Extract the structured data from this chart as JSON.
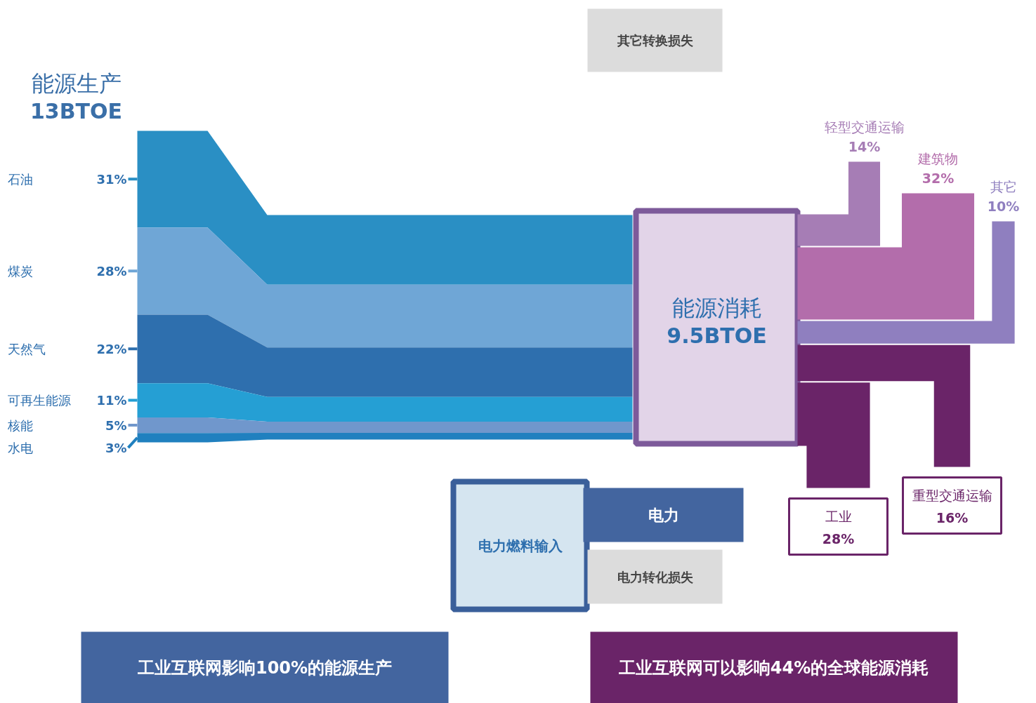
{
  "chart_data": [
    {
      "type": "other",
      "title": "能源生产",
      "subtitle": "13BTOE",
      "categories": [
        "石油",
        "煤炭",
        "天然气",
        "可再生能源",
        "核能",
        "水电"
      ],
      "values": [
        31,
        28,
        22,
        11,
        5,
        3
      ],
      "value_labels": [
        "31%",
        "28%",
        "22%",
        "11%",
        "5%",
        "3%"
      ],
      "colors": [
        "#2a8fc4",
        "#6fa6d6",
        "#2e6fae",
        "#259fd4",
        "#7097cc",
        "#2080bf"
      ],
      "annotations": [
        "其它转换损失",
        "电力燃料输入",
        "电力",
        "电力转化损失",
        "工业互联网影响100%的能源生产"
      ]
    },
    {
      "type": "other",
      "title": "能源消耗",
      "subtitle": "9.5BTOE",
      "categories": [
        "轻型交通运输",
        "建筑物",
        "其它",
        "工业",
        "重型交通运输"
      ],
      "values": [
        14,
        32,
        10,
        28,
        16
      ],
      "value_labels": [
        "14%",
        "32%",
        "10%",
        "28%",
        "16%"
      ],
      "colors": [
        "#a67db5",
        "#b36dab",
        "#8f7fbf",
        "#6a2468",
        "#6a2468"
      ],
      "annotations": [
        "工业互联网可以影响44%的全球能源消耗"
      ]
    }
  ]
}
